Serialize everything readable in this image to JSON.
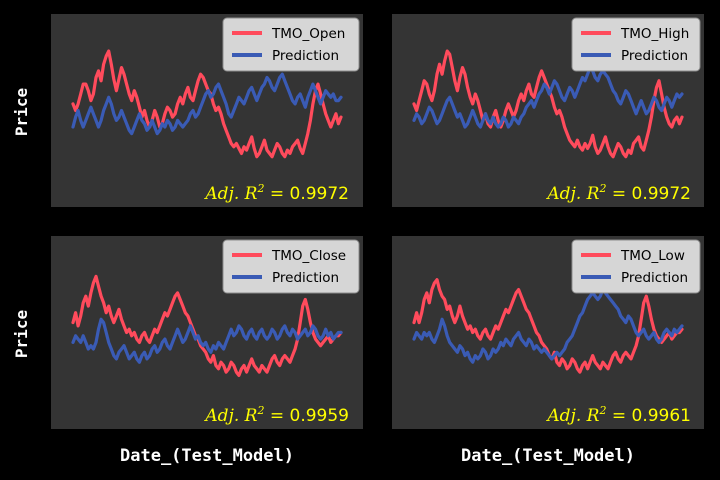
{
  "colors": {
    "figure_bg": "#000000",
    "axes_bg": "#343434",
    "actual_line": "#ff4b5c",
    "prediction_line": "#3a5bb5",
    "annotation": "#ffff00",
    "label": "#ffffff"
  },
  "chart_data": [
    {
      "type": "line",
      "ylabel": "Price",
      "xlabel": "",
      "legend_position": "upper-right",
      "legend": [
        "TMO_Open",
        "Prediction"
      ],
      "annotation": {
        "prefix": "Adj. R",
        "sup": "2",
        "eq": " = ",
        "value": "0.9972"
      },
      "grid": false,
      "series": [
        {
          "name": "TMO_Open",
          "values": [
            0.54,
            0.5,
            0.54,
            0.6,
            0.66,
            0.66,
            0.62,
            0.56,
            0.6,
            0.7,
            0.74,
            0.68,
            0.78,
            0.83,
            0.86,
            0.78,
            0.69,
            0.62,
            0.69,
            0.76,
            0.72,
            0.66,
            0.6,
            0.56,
            0.62,
            0.58,
            0.52,
            0.46,
            0.5,
            0.44,
            0.4,
            0.44,
            0.5,
            0.46,
            0.4,
            0.42,
            0.48,
            0.52,
            0.5,
            0.46,
            0.48,
            0.54,
            0.58,
            0.54,
            0.6,
            0.64,
            0.58,
            0.56,
            0.62,
            0.68,
            0.72,
            0.7,
            0.66,
            0.62,
            0.6,
            0.54,
            0.5,
            0.52,
            0.48,
            0.42,
            0.38,
            0.34,
            0.3,
            0.28,
            0.3,
            0.27,
            0.24,
            0.28,
            0.26,
            0.3,
            0.34,
            0.27,
            0.22,
            0.24,
            0.28,
            0.32,
            0.26,
            0.24,
            0.22,
            0.26,
            0.3,
            0.28,
            0.24,
            0.22,
            0.26,
            0.24,
            0.28,
            0.3,
            0.32,
            0.27,
            0.24,
            0.3,
            0.36,
            0.44,
            0.54,
            0.62,
            0.66,
            0.6,
            0.54,
            0.48,
            0.44,
            0.4,
            0.44,
            0.48,
            0.42,
            0.46
          ]
        },
        {
          "name": "Prediction",
          "values": [
            0.4,
            0.46,
            0.5,
            0.44,
            0.4,
            0.44,
            0.48,
            0.52,
            0.48,
            0.44,
            0.4,
            0.44,
            0.5,
            0.54,
            0.58,
            0.54,
            0.48,
            0.44,
            0.46,
            0.5,
            0.46,
            0.42,
            0.38,
            0.36,
            0.4,
            0.44,
            0.48,
            0.44,
            0.42,
            0.38,
            0.4,
            0.44,
            0.4,
            0.36,
            0.38,
            0.42,
            0.4,
            0.44,
            0.42,
            0.38,
            0.4,
            0.44,
            0.42,
            0.4,
            0.42,
            0.44,
            0.48,
            0.5,
            0.46,
            0.48,
            0.52,
            0.56,
            0.6,
            0.62,
            0.58,
            0.6,
            0.64,
            0.66,
            0.62,
            0.58,
            0.54,
            0.48,
            0.46,
            0.5,
            0.54,
            0.58,
            0.56,
            0.54,
            0.58,
            0.62,
            0.64,
            0.6,
            0.56,
            0.6,
            0.64,
            0.66,
            0.7,
            0.68,
            0.64,
            0.62,
            0.66,
            0.7,
            0.72,
            0.68,
            0.64,
            0.6,
            0.56,
            0.54,
            0.58,
            0.6,
            0.56,
            0.52,
            0.58,
            0.62,
            0.66,
            0.62,
            0.58,
            0.54,
            0.58,
            0.62,
            0.6,
            0.58,
            0.6,
            0.56,
            0.56,
            0.58
          ]
        }
      ]
    },
    {
      "type": "line",
      "ylabel": "",
      "xlabel": "",
      "legend_position": "upper-right",
      "legend": [
        "TMO_High",
        "Prediction"
      ],
      "annotation": {
        "prefix": "Adj. R",
        "sup": "2",
        "eq": " = ",
        "value": "0.9972"
      },
      "grid": false,
      "series": [
        {
          "name": "TMO_High",
          "values": [
            0.54,
            0.5,
            0.56,
            0.62,
            0.68,
            0.66,
            0.6,
            0.56,
            0.62,
            0.72,
            0.78,
            0.72,
            0.8,
            0.86,
            0.84,
            0.76,
            0.68,
            0.62,
            0.7,
            0.76,
            0.72,
            0.64,
            0.58,
            0.54,
            0.6,
            0.56,
            0.5,
            0.44,
            0.48,
            0.42,
            0.4,
            0.46,
            0.5,
            0.44,
            0.4,
            0.44,
            0.5,
            0.54,
            0.5,
            0.46,
            0.5,
            0.56,
            0.6,
            0.56,
            0.62,
            0.66,
            0.6,
            0.58,
            0.64,
            0.7,
            0.74,
            0.7,
            0.66,
            0.62,
            0.58,
            0.52,
            0.48,
            0.5,
            0.46,
            0.4,
            0.36,
            0.32,
            0.3,
            0.28,
            0.32,
            0.28,
            0.26,
            0.3,
            0.27,
            0.3,
            0.35,
            0.28,
            0.24,
            0.26,
            0.3,
            0.34,
            0.28,
            0.24,
            0.22,
            0.26,
            0.3,
            0.28,
            0.24,
            0.22,
            0.26,
            0.24,
            0.3,
            0.32,
            0.34,
            0.28,
            0.26,
            0.32,
            0.38,
            0.46,
            0.56,
            0.64,
            0.68,
            0.6,
            0.52,
            0.46,
            0.42,
            0.4,
            0.44,
            0.46,
            0.42,
            0.46
          ]
        },
        {
          "name": "Prediction",
          "values": [
            0.44,
            0.48,
            0.46,
            0.42,
            0.44,
            0.48,
            0.52,
            0.5,
            0.46,
            0.42,
            0.44,
            0.48,
            0.52,
            0.56,
            0.58,
            0.54,
            0.5,
            0.46,
            0.48,
            0.44,
            0.4,
            0.42,
            0.46,
            0.5,
            0.46,
            0.42,
            0.4,
            0.44,
            0.48,
            0.44,
            0.42,
            0.46,
            0.42,
            0.4,
            0.42,
            0.46,
            0.44,
            0.4,
            0.42,
            0.46,
            0.44,
            0.42,
            0.46,
            0.48,
            0.52,
            0.54,
            0.56,
            0.52,
            0.56,
            0.6,
            0.62,
            0.66,
            0.64,
            0.6,
            0.64,
            0.68,
            0.66,
            0.62,
            0.58,
            0.56,
            0.6,
            0.64,
            0.62,
            0.58,
            0.62,
            0.66,
            0.7,
            0.68,
            0.72,
            0.76,
            0.74,
            0.7,
            0.68,
            0.72,
            0.74,
            0.72,
            0.7,
            0.66,
            0.62,
            0.6,
            0.56,
            0.54,
            0.58,
            0.62,
            0.6,
            0.56,
            0.52,
            0.48,
            0.52,
            0.56,
            0.52,
            0.48,
            0.5,
            0.54,
            0.58,
            0.56,
            0.52,
            0.5,
            0.54,
            0.58,
            0.56,
            0.52,
            0.56,
            0.6,
            0.58,
            0.6
          ]
        }
      ]
    },
    {
      "type": "line",
      "ylabel": "Price",
      "xlabel": "Date_(Test_Model)",
      "legend_position": "upper-right",
      "legend": [
        "TMO_Close",
        "Prediction"
      ],
      "annotation": {
        "prefix": "Adj. R",
        "sup": "2",
        "eq": " = ",
        "value": "0.9959"
      },
      "grid": false,
      "series": [
        {
          "name": "TMO_Close",
          "values": [
            0.56,
            0.62,
            0.54,
            0.6,
            0.68,
            0.72,
            0.66,
            0.74,
            0.8,
            0.84,
            0.78,
            0.72,
            0.68,
            0.62,
            0.66,
            0.6,
            0.56,
            0.6,
            0.64,
            0.58,
            0.54,
            0.5,
            0.52,
            0.48,
            0.5,
            0.46,
            0.44,
            0.48,
            0.5,
            0.46,
            0.44,
            0.48,
            0.52,
            0.5,
            0.54,
            0.58,
            0.62,
            0.6,
            0.64,
            0.68,
            0.72,
            0.74,
            0.7,
            0.66,
            0.62,
            0.6,
            0.56,
            0.52,
            0.48,
            0.46,
            0.42,
            0.4,
            0.38,
            0.34,
            0.32,
            0.36,
            0.3,
            0.28,
            0.32,
            0.3,
            0.26,
            0.28,
            0.32,
            0.3,
            0.26,
            0.24,
            0.28,
            0.3,
            0.26,
            0.3,
            0.34,
            0.3,
            0.28,
            0.26,
            0.3,
            0.28,
            0.26,
            0.3,
            0.34,
            0.36,
            0.32,
            0.3,
            0.34,
            0.36,
            0.34,
            0.32,
            0.36,
            0.4,
            0.46,
            0.56,
            0.66,
            0.7,
            0.64,
            0.56,
            0.5,
            0.46,
            0.44,
            0.42,
            0.44,
            0.46,
            0.48,
            0.44,
            0.46,
            0.48,
            0.48,
            0.5
          ]
        },
        {
          "name": "Prediction",
          "values": [
            0.44,
            0.48,
            0.46,
            0.44,
            0.48,
            0.44,
            0.4,
            0.42,
            0.4,
            0.44,
            0.52,
            0.58,
            0.56,
            0.5,
            0.44,
            0.4,
            0.36,
            0.34,
            0.38,
            0.4,
            0.42,
            0.38,
            0.34,
            0.36,
            0.38,
            0.34,
            0.32,
            0.36,
            0.38,
            0.34,
            0.36,
            0.4,
            0.42,
            0.38,
            0.4,
            0.44,
            0.46,
            0.42,
            0.4,
            0.44,
            0.48,
            0.52,
            0.48,
            0.44,
            0.46,
            0.5,
            0.54,
            0.5,
            0.46,
            0.48,
            0.44,
            0.42,
            0.44,
            0.4,
            0.38,
            0.42,
            0.4,
            0.44,
            0.42,
            0.4,
            0.44,
            0.48,
            0.52,
            0.48,
            0.5,
            0.54,
            0.52,
            0.48,
            0.46,
            0.5,
            0.52,
            0.48,
            0.46,
            0.5,
            0.52,
            0.48,
            0.46,
            0.48,
            0.52,
            0.5,
            0.46,
            0.48,
            0.52,
            0.54,
            0.5,
            0.48,
            0.52,
            0.5,
            0.46,
            0.48,
            0.5,
            0.52,
            0.48,
            0.5,
            0.54,
            0.52,
            0.48,
            0.46,
            0.48,
            0.52,
            0.48,
            0.5,
            0.46,
            0.48,
            0.5,
            0.5
          ]
        }
      ]
    },
    {
      "type": "line",
      "ylabel": "",
      "xlabel": "Date_(Test_Model)",
      "legend_position": "upper-right",
      "legend": [
        "TMO_Low",
        "Prediction"
      ],
      "annotation": {
        "prefix": "Adj. R",
        "sup": "2",
        "eq": " = ",
        "value": "0.9961"
      },
      "grid": false,
      "series": [
        {
          "name": "TMO_Low",
          "values": [
            0.56,
            0.62,
            0.56,
            0.62,
            0.7,
            0.74,
            0.68,
            0.76,
            0.8,
            0.82,
            0.76,
            0.72,
            0.7,
            0.64,
            0.66,
            0.6,
            0.56,
            0.6,
            0.66,
            0.6,
            0.56,
            0.52,
            0.54,
            0.5,
            0.52,
            0.48,
            0.46,
            0.5,
            0.52,
            0.48,
            0.46,
            0.5,
            0.54,
            0.52,
            0.56,
            0.6,
            0.64,
            0.62,
            0.66,
            0.7,
            0.74,
            0.76,
            0.72,
            0.68,
            0.64,
            0.62,
            0.58,
            0.54,
            0.5,
            0.48,
            0.44,
            0.42,
            0.4,
            0.36,
            0.34,
            0.38,
            0.32,
            0.3,
            0.34,
            0.32,
            0.28,
            0.3,
            0.34,
            0.32,
            0.28,
            0.26,
            0.3,
            0.32,
            0.28,
            0.32,
            0.36,
            0.32,
            0.3,
            0.28,
            0.32,
            0.3,
            0.28,
            0.32,
            0.36,
            0.38,
            0.34,
            0.32,
            0.36,
            0.38,
            0.36,
            0.34,
            0.38,
            0.42,
            0.48,
            0.58,
            0.68,
            0.72,
            0.66,
            0.58,
            0.52,
            0.48,
            0.46,
            0.44,
            0.46,
            0.48,
            0.5,
            0.46,
            0.48,
            0.5,
            0.5,
            0.52
          ]
        },
        {
          "name": "Prediction",
          "values": [
            0.46,
            0.5,
            0.48,
            0.46,
            0.5,
            0.48,
            0.5,
            0.46,
            0.44,
            0.48,
            0.52,
            0.58,
            0.54,
            0.48,
            0.44,
            0.42,
            0.4,
            0.38,
            0.42,
            0.4,
            0.36,
            0.38,
            0.34,
            0.32,
            0.36,
            0.34,
            0.36,
            0.4,
            0.38,
            0.34,
            0.36,
            0.4,
            0.38,
            0.4,
            0.44,
            0.42,
            0.46,
            0.44,
            0.42,
            0.46,
            0.48,
            0.5,
            0.46,
            0.44,
            0.42,
            0.46,
            0.44,
            0.4,
            0.42,
            0.4,
            0.38,
            0.4,
            0.38,
            0.36,
            0.34,
            0.36,
            0.38,
            0.36,
            0.38,
            0.4,
            0.44,
            0.46,
            0.48,
            0.52,
            0.56,
            0.6,
            0.62,
            0.66,
            0.7,
            0.72,
            0.74,
            0.72,
            0.7,
            0.72,
            0.76,
            0.74,
            0.72,
            0.7,
            0.68,
            0.66,
            0.64,
            0.6,
            0.58,
            0.56,
            0.6,
            0.58,
            0.54,
            0.5,
            0.48,
            0.5,
            0.52,
            0.48,
            0.46,
            0.48,
            0.5,
            0.46,
            0.44,
            0.46,
            0.5,
            0.52,
            0.5,
            0.48,
            0.52,
            0.5,
            0.52,
            0.54
          ]
        }
      ]
    }
  ]
}
